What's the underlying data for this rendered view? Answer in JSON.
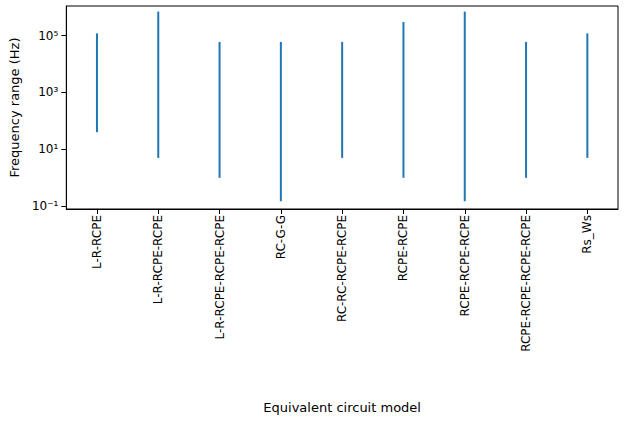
{
  "chart_data": {
    "type": "range",
    "categories": [
      "L-R-RCPE",
      "L-R-RCPE-RCPE",
      "L-R-RCPE-RCPE-RCPE",
      "RC-G-G",
      "RC-RC-RCPE-RCPE",
      "RCPE-RCPE",
      "RCPE-RCPE-RCPE",
      "RCPE-RCPE-RCPE-RCPE",
      "Rs_Ws"
    ],
    "low": [
      40,
      5,
      1,
      0.15,
      5,
      1,
      0.15,
      1,
      5
    ],
    "high": [
      120000,
      700000,
      60000,
      60000,
      60000,
      300000,
      700000,
      60000,
      120000
    ],
    "color": "#1f77b4",
    "xlabel": "Equivalent circuit model",
    "ylabel": "Frequency range (Hz)",
    "log": "y",
    "ylim": [
      0.08,
      1100000
    ],
    "yticks": [
      {
        "value": 0.1,
        "label": "10⁻¹"
      },
      {
        "value": 10,
        "label": "10¹"
      },
      {
        "value": 1000,
        "label": "10³"
      },
      {
        "value": 100000,
        "label": "10⁵"
      }
    ],
    "grid": false
  }
}
